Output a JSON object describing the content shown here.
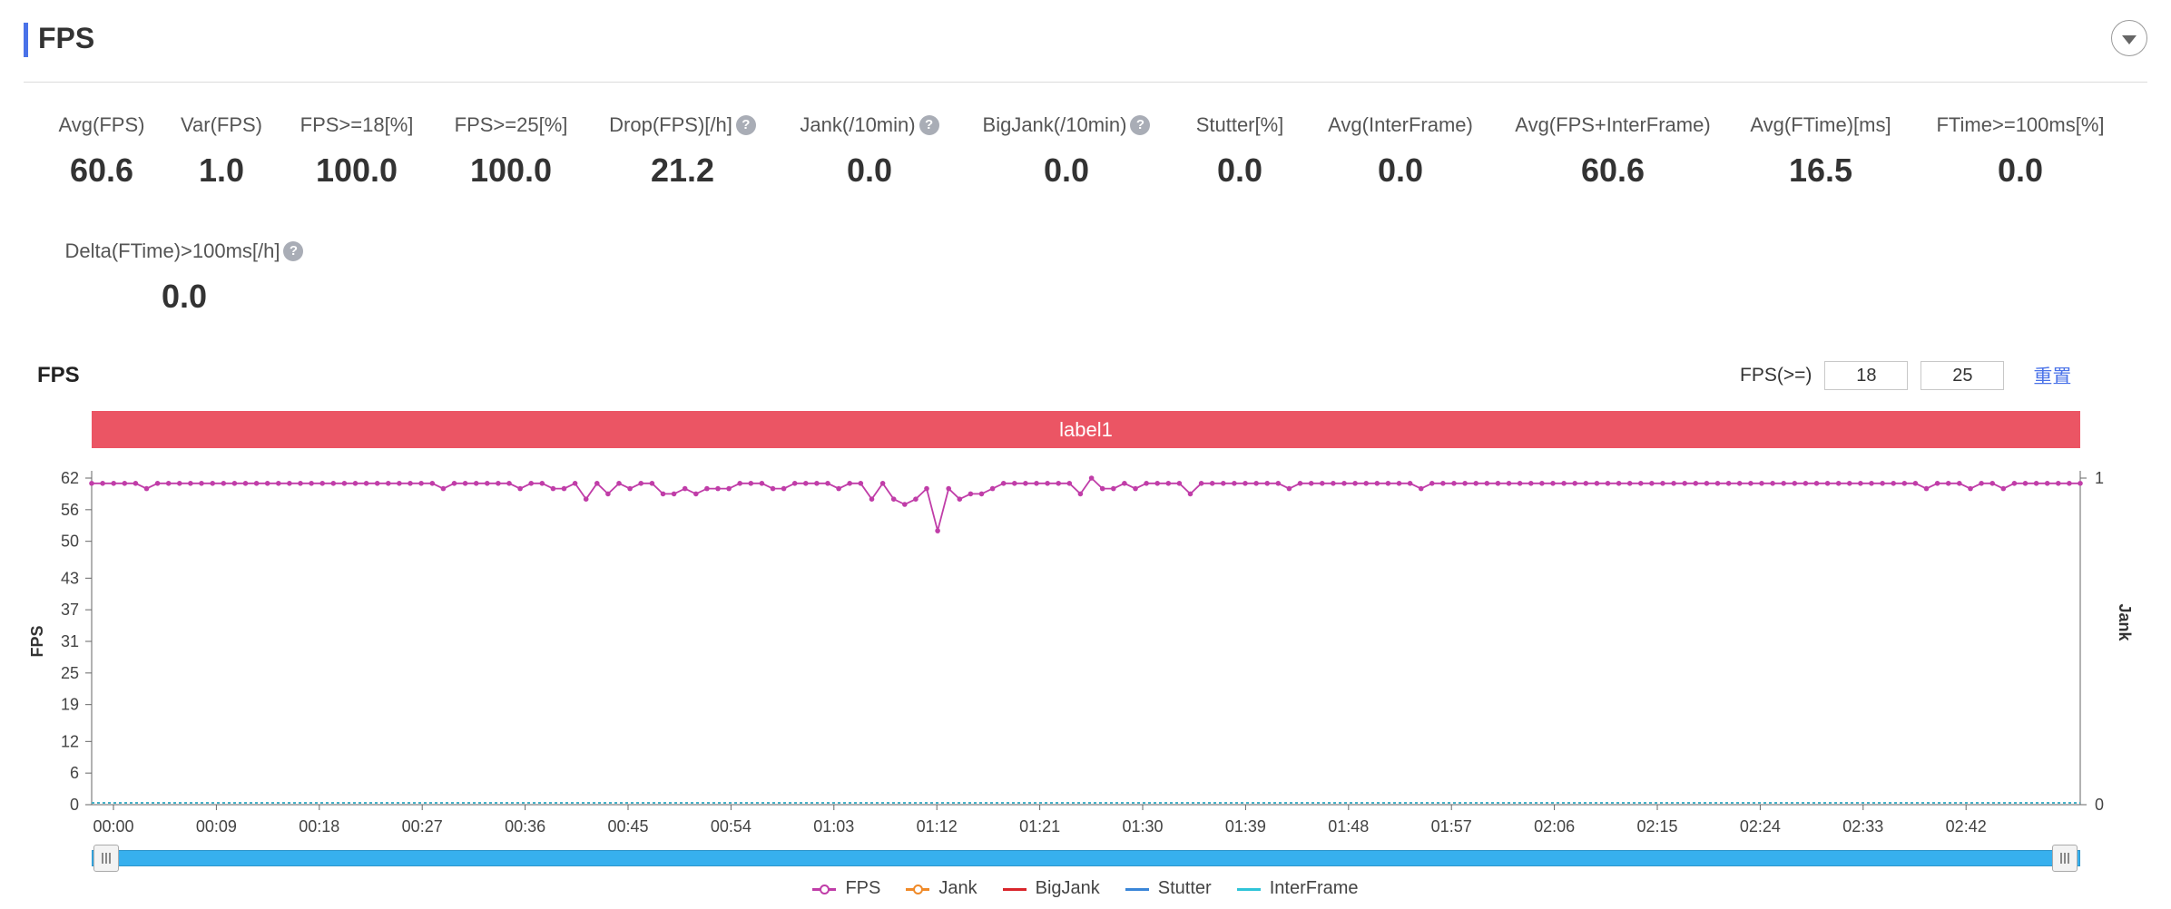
{
  "header": {
    "title": "FPS"
  },
  "metrics": [
    {
      "label": "Avg(FPS)",
      "value": "60.6",
      "help": false
    },
    {
      "label": "Var(FPS)",
      "value": "1.0",
      "help": false
    },
    {
      "label": "FPS>=18[%]",
      "value": "100.0",
      "help": false
    },
    {
      "label": "FPS>=25[%]",
      "value": "100.0",
      "help": false
    },
    {
      "label": "Drop(FPS)[/h]",
      "value": "21.2",
      "help": true
    },
    {
      "label": "Jank(/10min)",
      "value": "0.0",
      "help": true
    },
    {
      "label": "BigJank(/10min)",
      "value": "0.0",
      "help": true
    },
    {
      "label": "Stutter[%]",
      "value": "0.0",
      "help": false
    },
    {
      "label": "Avg(InterFrame)",
      "value": "0.0",
      "help": false
    },
    {
      "label": "Avg(FPS+InterFrame)",
      "value": "60.6",
      "help": false
    },
    {
      "label": "Avg(FTime)[ms]",
      "value": "16.5",
      "help": false
    },
    {
      "label": "FTime>=100ms[%]",
      "value": "0.0",
      "help": false
    },
    {
      "label": "Delta(FTime)>100ms[/h]",
      "value": "0.0",
      "help": true
    }
  ],
  "help_glyph": "?",
  "chart_section": {
    "title": "FPS",
    "threshold_label": "FPS(>=)",
    "threshold_low": "18",
    "threshold_high": "25",
    "reset_label": "重置",
    "band_label": "label1"
  },
  "colors": {
    "accent": "#4a72e8",
    "band": "#eb5564",
    "fps": "#c03da8",
    "jank": "#f08a28",
    "bigjank": "#d9252b",
    "stutter": "#3a86d8",
    "interframe": "#2fc4d8",
    "slider": "#37b0ee"
  },
  "chart_data": {
    "type": "line",
    "ylabel": "FPS",
    "y2label": "Jank",
    "yticks": [
      0,
      6,
      12,
      19,
      25,
      31,
      37,
      43,
      50,
      56,
      62
    ],
    "ylim": [
      0,
      62
    ],
    "y2ticks": [
      0,
      1
    ],
    "y2lim": [
      0,
      1
    ],
    "x_tick_labels": [
      "00:00",
      "00:09",
      "00:18",
      "00:27",
      "00:36",
      "00:45",
      "00:54",
      "01:03",
      "01:12",
      "01:21",
      "01:30",
      "01:39",
      "01:48",
      "01:57",
      "02:06",
      "02:15",
      "02:24",
      "02:33",
      "02:42"
    ],
    "x_range_seconds": [
      0,
      1020
    ],
    "x_tick_interval_seconds": 54,
    "series": [
      {
        "name": "FPS",
        "values": [
          61,
          61,
          61,
          61,
          61,
          60,
          61,
          61,
          61,
          61,
          61,
          61,
          61,
          61,
          61,
          61,
          61,
          61,
          61,
          61,
          61,
          61,
          61,
          61,
          61,
          61,
          61,
          61,
          61,
          61,
          61,
          61,
          60,
          61,
          61,
          61,
          61,
          61,
          61,
          60,
          61,
          61,
          60,
          60,
          61,
          58,
          61,
          59,
          61,
          60,
          61,
          61,
          59,
          59,
          60,
          59,
          60,
          60,
          60,
          61,
          61,
          61,
          60,
          60,
          61,
          61,
          61,
          61,
          60,
          61,
          61,
          58,
          61,
          58,
          57,
          58,
          60,
          52,
          60,
          58,
          59,
          59,
          60,
          61,
          61,
          61,
          61,
          61,
          61,
          61,
          59,
          62,
          60,
          60,
          61,
          60,
          61,
          61,
          61,
          61,
          59,
          61,
          61,
          61,
          61,
          61,
          61,
          61,
          61,
          60,
          61,
          61,
          61,
          61,
          61,
          61,
          61,
          61,
          61,
          61,
          61,
          60,
          61,
          61,
          61,
          61,
          61,
          61,
          61,
          61,
          61,
          61,
          61,
          61,
          61,
          61,
          61,
          61,
          61,
          61,
          61,
          61,
          61,
          61,
          61,
          61,
          61,
          61,
          61,
          61,
          61,
          61,
          61,
          61,
          61,
          61,
          61,
          61,
          61,
          61,
          61,
          61,
          61,
          61,
          61,
          61,
          61,
          60,
          61,
          61,
          61,
          60,
          61,
          61,
          60,
          61,
          61,
          61,
          61,
          61,
          61,
          61
        ]
      },
      {
        "name": "Jank",
        "values": [
          0
        ]
      },
      {
        "name": "BigJank",
        "values": [
          0
        ]
      },
      {
        "name": "Stutter",
        "values": [
          0
        ]
      },
      {
        "name": "InterFrame",
        "values": [
          0
        ]
      }
    ],
    "legend": [
      "FPS",
      "Jank",
      "BigJank",
      "Stutter",
      "InterFrame"
    ],
    "legend_position": "bottom",
    "grid": false
  }
}
